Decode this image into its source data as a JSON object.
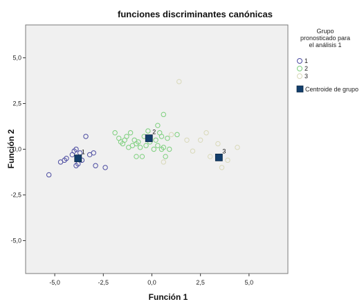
{
  "chart_data": {
    "type": "scatter",
    "title": "funciones discriminantes canónicas",
    "xlabel": "Función 1",
    "ylabel": "Función 2",
    "xlim": [
      -6.5,
      7
    ],
    "ylim": [
      -6.8,
      6.8
    ],
    "x_ticks": [
      -5.0,
      -2.5,
      0.0,
      2.5,
      5.0
    ],
    "y_ticks": [
      -5.0,
      -2.5,
      0.0,
      2.5,
      5.0
    ],
    "x_tick_labels": [
      "-5,0",
      "-2,5",
      "0,0",
      "2,5",
      "5,0"
    ],
    "y_tick_labels": [
      "-5,0",
      "-2,5",
      "0,0",
      "2,5",
      "5,0"
    ],
    "grid": false,
    "legend": {
      "title": "Grupo pronosticado para el análisis 1",
      "title_lines": [
        "Grupo",
        "pronosticado para",
        "el análisis 1"
      ],
      "placement": "right",
      "entries": [
        {
          "label": "1",
          "marker": "circle",
          "color": "#4a4aa0"
        },
        {
          "label": "2",
          "marker": "circle",
          "color": "#7ccf7c"
        },
        {
          "label": "3",
          "marker": "circle",
          "color": "#d8d8b8"
        },
        {
          "label": "Centroide de grupo",
          "marker": "square",
          "color": "#123e6b"
        }
      ]
    },
    "series": [
      {
        "name": "1",
        "color": "#4a4aa0",
        "points": [
          [
            -5.3,
            -1.4
          ],
          [
            -4.7,
            -0.7
          ],
          [
            -4.5,
            -0.6
          ],
          [
            -4.1,
            -0.3
          ],
          [
            -4.0,
            -0.1
          ],
          [
            -3.9,
            0.0
          ],
          [
            -3.8,
            -0.8
          ],
          [
            -3.6,
            -0.6
          ],
          [
            -3.4,
            0.7
          ],
          [
            -3.2,
            -0.3
          ],
          [
            -3.0,
            -0.2
          ],
          [
            -2.9,
            -0.9
          ],
          [
            -2.4,
            -1.0
          ],
          [
            -3.9,
            -0.9
          ],
          [
            -4.4,
            -0.5
          ],
          [
            -3.7,
            -0.2
          ]
        ]
      },
      {
        "name": "2",
        "color": "#7ccf7c",
        "points": [
          [
            -1.9,
            0.9
          ],
          [
            -1.7,
            0.6
          ],
          [
            -1.5,
            0.3
          ],
          [
            -1.4,
            0.5
          ],
          [
            -1.3,
            0.7
          ],
          [
            -1.2,
            0.1
          ],
          [
            -1.1,
            0.9
          ],
          [
            -1.0,
            0.2
          ],
          [
            -0.9,
            0.5
          ],
          [
            -0.8,
            0.3
          ],
          [
            -0.7,
            0.4
          ],
          [
            -0.6,
            0.1
          ],
          [
            -0.5,
            -0.4
          ],
          [
            -0.4,
            0.7
          ],
          [
            -0.3,
            0.2
          ],
          [
            -0.2,
            1.0
          ],
          [
            -0.1,
            0.4
          ],
          [
            0.1,
            0.0
          ],
          [
            0.2,
            0.5
          ],
          [
            0.3,
            0.2
          ],
          [
            0.3,
            1.3
          ],
          [
            0.4,
            0.9
          ],
          [
            0.5,
            0.7
          ],
          [
            0.5,
            0.0
          ],
          [
            0.6,
            0.1
          ],
          [
            0.6,
            1.9
          ],
          [
            0.7,
            -0.4
          ],
          [
            0.8,
            0.6
          ],
          [
            0.9,
            0.0
          ],
          [
            1.3,
            0.8
          ],
          [
            -0.8,
            -0.4
          ],
          [
            -1.6,
            0.4
          ]
        ]
      },
      {
        "name": "3",
        "color": "#d8d8b8",
        "points": [
          [
            1.4,
            3.7
          ],
          [
            0.6,
            -0.7
          ],
          [
            1.0,
            0.8
          ],
          [
            2.1,
            -0.1
          ],
          [
            2.5,
            0.5
          ],
          [
            3.0,
            -0.4
          ],
          [
            3.4,
            0.3
          ],
          [
            3.9,
            -0.6
          ],
          [
            4.4,
            0.1
          ],
          [
            2.8,
            0.9
          ],
          [
            1.8,
            0.5
          ],
          [
            3.6,
            -1.0
          ]
        ]
      }
    ],
    "centroids": [
      {
        "label": "1",
        "x": -3.8,
        "y": -0.5
      },
      {
        "label": "2",
        "x": -0.15,
        "y": 0.6
      },
      {
        "label": "3",
        "x": 3.45,
        "y": -0.45
      }
    ]
  }
}
